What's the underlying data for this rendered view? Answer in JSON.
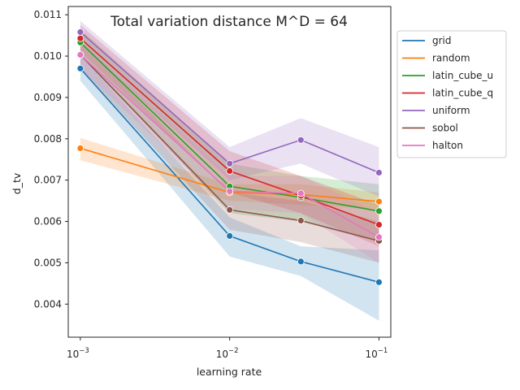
{
  "chart_data": {
    "type": "line",
    "title": "Total variation distance M^D = 64",
    "xlabel": "learning rate",
    "ylabel": "d_tv",
    "xscale": "log",
    "xlim": [
      0.00083,
      0.12
    ],
    "ylim": [
      0.0032,
      0.0112
    ],
    "x": [
      0.001,
      0.01,
      0.03,
      0.1
    ],
    "xticks": [
      {
        "value": 0.001,
        "base": "10",
        "exp": "−3"
      },
      {
        "value": 0.01,
        "base": "10",
        "exp": "−2"
      },
      {
        "value": 0.1,
        "base": "10",
        "exp": "−1"
      }
    ],
    "yticks": [
      0.004,
      0.005,
      0.006,
      0.007,
      0.008,
      0.009,
      0.01,
      0.011
    ],
    "ytick_labels": [
      "0.004",
      "0.005",
      "0.006",
      "0.007",
      "0.008",
      "0.009",
      "0.010",
      "0.011"
    ],
    "grid": false,
    "legend_position": "outside-top-right",
    "series": [
      {
        "name": "grid",
        "color": "#1f77b4",
        "values": [
          0.0097,
          0.00565,
          0.00503,
          0.00453
        ],
        "lower": [
          0.0094,
          0.00515,
          0.00468,
          0.0036
        ],
        "upper": [
          0.01,
          0.0061,
          0.0054,
          0.0053
        ]
      },
      {
        "name": "random",
        "color": "#ff7f0e",
        "values": [
          0.00777,
          0.0067,
          0.00665,
          0.00648
        ],
        "lower": [
          0.00748,
          0.0065,
          0.0064,
          0.0063
        ],
        "upper": [
          0.00802,
          0.0069,
          0.0069,
          0.0067
        ]
      },
      {
        "name": "latin_cube_u",
        "color": "#2ca02c",
        "values": [
          0.01033,
          0.00685,
          0.00658,
          0.00625
        ],
        "lower": [
          0.01,
          0.0062,
          0.006,
          0.0055
        ],
        "upper": [
          0.01065,
          0.0074,
          0.0071,
          0.0069
        ]
      },
      {
        "name": "latin_cube_q",
        "color": "#d62728",
        "values": [
          0.01043,
          0.00722,
          0.00662,
          0.00592
        ],
        "lower": [
          0.0101,
          0.0067,
          0.0062,
          0.0054
        ],
        "upper": [
          0.01075,
          0.0077,
          0.0071,
          0.0064
        ]
      },
      {
        "name": "uniform",
        "color": "#9467bd",
        "values": [
          0.01058,
          0.0074,
          0.00797,
          0.00718
        ],
        "lower": [
          0.0103,
          0.007,
          0.0074,
          0.0066
        ],
        "upper": [
          0.01085,
          0.0078,
          0.0085,
          0.0078
        ]
      },
      {
        "name": "sobol",
        "color": "#8c564b",
        "values": [
          0.01003,
          0.00628,
          0.00602,
          0.00553
        ],
        "lower": [
          0.0097,
          0.0058,
          0.0055,
          0.005
        ],
        "upper": [
          0.01035,
          0.0067,
          0.0065,
          0.006
        ]
      },
      {
        "name": "halton",
        "color": "#e377c2",
        "values": [
          0.01003,
          0.00673,
          0.00668,
          0.00562
        ],
        "lower": [
          0.0097,
          0.0063,
          0.0062,
          0.005
        ],
        "upper": [
          0.01035,
          0.0071,
          0.0071,
          0.0062
        ]
      }
    ]
  }
}
